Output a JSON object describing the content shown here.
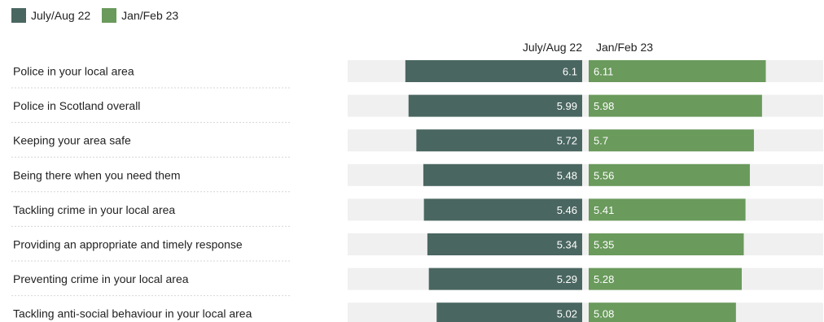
{
  "legend": [
    {
      "name": "July/Aug 22",
      "color": "#4a6660"
    },
    {
      "name": "Jan/Feb 23",
      "color": "#6a9a5c"
    }
  ],
  "headers": {
    "left": "July/Aug 22",
    "right": "Jan/Feb 23"
  },
  "chart_data": {
    "type": "bar",
    "orientation": "horizontal-diverging",
    "categories": [
      "Police in your local area",
      "Police in Scotland overall",
      "Keeping your area safe",
      "Being there when you need them",
      "Tackling crime in your local area",
      "Providing an appropriate and timely response",
      "Preventing crime in your local area",
      "Tackling anti-social behaviour in your local area"
    ],
    "series": [
      {
        "name": "July/Aug 22",
        "color": "#4a6660",
        "values": [
          6.1,
          5.99,
          5.72,
          5.48,
          5.46,
          5.34,
          5.29,
          5.02
        ]
      },
      {
        "name": "Jan/Feb 23",
        "color": "#6a9a5c",
        "values": [
          6.11,
          5.98,
          5.7,
          5.56,
          5.41,
          5.35,
          5.28,
          5.08
        ]
      }
    ],
    "labels": {
      "left": [
        "6.1",
        "5.99",
        "5.72",
        "5.48",
        "5.46",
        "5.34",
        "5.29",
        "5.02"
      ],
      "right": [
        "6.11",
        "5.98",
        "5.7",
        "5.56",
        "5.41",
        "5.35",
        "5.28",
        "5.08"
      ]
    },
    "xlim": [
      0,
      10
    ],
    "legend_position": "top-left",
    "grid": false
  }
}
